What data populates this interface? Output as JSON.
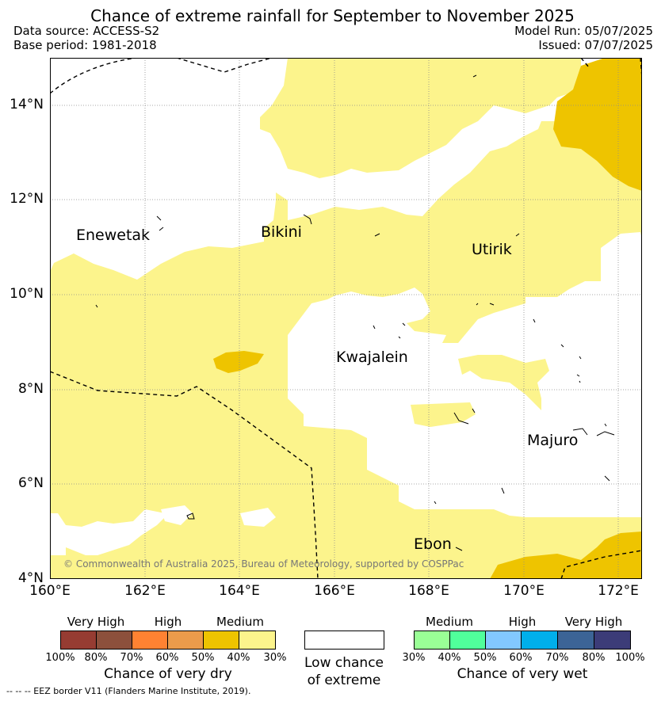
{
  "header": {
    "title": "Chance of extreme rainfall for September to November 2025",
    "data_source": "Data source: ACCESS-S2",
    "base_period": "Base period: 1981-2018",
    "model_run": "Model Run: 05/07/2025",
    "issued": "Issued: 07/07/2025"
  },
  "map": {
    "extent": {
      "lon": [
        160,
        172.5
      ],
      "lat": [
        4,
        15
      ]
    },
    "lat_ticks": [
      "4°N",
      "6°N",
      "8°N",
      "10°N",
      "12°N",
      "14°N"
    ],
    "lon_ticks": [
      "160°E",
      "162°E",
      "164°E",
      "166°E",
      "168°E",
      "170°E",
      "172°E"
    ],
    "places": {
      "enewetak": "Enewetak",
      "bikini": "Bikini",
      "utirik": "Utirik",
      "kwajalein": "Kwajalein",
      "majuro": "Majuro",
      "ebon": "Ebon"
    },
    "copyright": "© Commonwealth of Australia 2025, Bureau of Meteorology, supported by COSPPac",
    "colors": {
      "medium_dry_30_40": "#fcf48c",
      "medium_dry_40_50": "#eec400",
      "land_outline": "#000000",
      "grid": "#8c8c8c"
    }
  },
  "legend": {
    "dry": {
      "groups": [
        "Very High",
        "High",
        "Medium"
      ],
      "percent_labels": [
        "100%",
        "80%",
        "70%",
        "60%",
        "50%",
        "40%",
        "30%"
      ],
      "colors": [
        "#963c32",
        "#8c503c",
        "#ff8232",
        "#eb9b4b",
        "#eec400",
        "#fcf48c"
      ],
      "title": "Chance of very dry"
    },
    "neutral": {
      "title_line1": "Low chance",
      "title_line2": "of extreme",
      "color": "#ffffff"
    },
    "wet": {
      "groups": [
        "Medium",
        "High",
        "Very High"
      ],
      "percent_labels": [
        "30%",
        "40%",
        "50%",
        "60%",
        "70%",
        "80%",
        "100%"
      ],
      "colors": [
        "#9aff96",
        "#50ff9b",
        "#82c8ff",
        "#00afeb",
        "#3c6496",
        "#3c3c78"
      ],
      "title": "Chance of very wet"
    }
  },
  "footnote": "--  --  -- EEZ border V11 (Flanders Marine Institute, 2019)."
}
